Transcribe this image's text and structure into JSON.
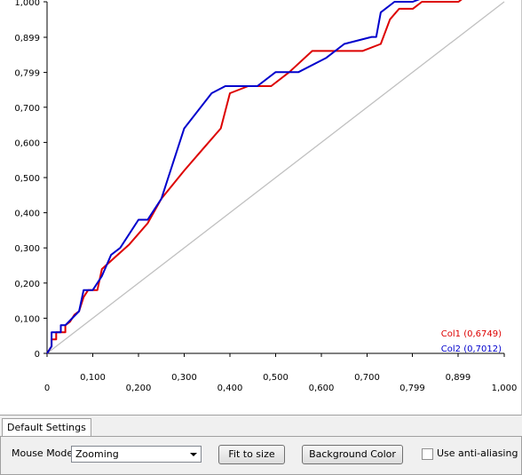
{
  "chart_data": {
    "type": "line",
    "xlim": [
      0,
      1
    ],
    "ylim": [
      0,
      1
    ],
    "x_tick_labels": [
      "0",
      "0,100",
      "0,200",
      "0,300",
      "0,400",
      "0,500",
      "0,600",
      "0,700",
      "0,799",
      "0,899",
      "1,000"
    ],
    "x_ticks": [
      0,
      0.1,
      0.2,
      0.3,
      0.4,
      0.5,
      0.6,
      0.7,
      0.799,
      0.899,
      1.0
    ],
    "y_tick_labels": [
      "0",
      "0,100",
      "0,200",
      "0,300",
      "0,400",
      "0,500",
      "0,600",
      "0,700",
      "0,799",
      "0,899",
      "1,000"
    ],
    "y_ticks": [
      0,
      0.1,
      0.2,
      0.3,
      0.4,
      0.5,
      0.6,
      0.7,
      0.799,
      0.899,
      1.0
    ],
    "grid": false,
    "legend": "bottom-right",
    "series": [
      {
        "name": "Col1 (0,6749)",
        "color": "#dd0000",
        "points": [
          [
            0,
            0
          ],
          [
            0.01,
            0.02
          ],
          [
            0.01,
            0.04
          ],
          [
            0.02,
            0.04
          ],
          [
            0.02,
            0.06
          ],
          [
            0.04,
            0.06
          ],
          [
            0.04,
            0.08
          ],
          [
            0.05,
            0.09
          ],
          [
            0.06,
            0.11
          ],
          [
            0.07,
            0.12
          ],
          [
            0.08,
            0.16
          ],
          [
            0.09,
            0.18
          ],
          [
            0.11,
            0.18
          ],
          [
            0.12,
            0.24
          ],
          [
            0.18,
            0.31
          ],
          [
            0.22,
            0.37
          ],
          [
            0.25,
            0.44
          ],
          [
            0.3,
            0.52
          ],
          [
            0.34,
            0.58
          ],
          [
            0.38,
            0.64
          ],
          [
            0.4,
            0.74
          ],
          [
            0.44,
            0.76
          ],
          [
            0.49,
            0.76
          ],
          [
            0.53,
            0.8
          ],
          [
            0.58,
            0.86
          ],
          [
            0.69,
            0.86
          ],
          [
            0.73,
            0.88
          ],
          [
            0.75,
            0.95
          ],
          [
            0.77,
            0.98
          ],
          [
            0.8,
            0.98
          ],
          [
            0.82,
            1.0
          ],
          [
            0.9,
            1.0
          ],
          [
            0.91,
            1.01
          ],
          [
            1.0,
            1.01
          ]
        ]
      },
      {
        "name": "Col2 (0,7012)",
        "color": "#0000cc",
        "points": [
          [
            0,
            0
          ],
          [
            0.01,
            0.02
          ],
          [
            0.01,
            0.06
          ],
          [
            0.03,
            0.06
          ],
          [
            0.03,
            0.08
          ],
          [
            0.04,
            0.08
          ],
          [
            0.07,
            0.12
          ],
          [
            0.08,
            0.18
          ],
          [
            0.1,
            0.18
          ],
          [
            0.12,
            0.22
          ],
          [
            0.14,
            0.28
          ],
          [
            0.16,
            0.3
          ],
          [
            0.2,
            0.38
          ],
          [
            0.22,
            0.38
          ],
          [
            0.25,
            0.44
          ],
          [
            0.3,
            0.64
          ],
          [
            0.36,
            0.74
          ],
          [
            0.39,
            0.76
          ],
          [
            0.46,
            0.76
          ],
          [
            0.5,
            0.8
          ],
          [
            0.55,
            0.8
          ],
          [
            0.61,
            0.84
          ],
          [
            0.65,
            0.88
          ],
          [
            0.71,
            0.9
          ],
          [
            0.72,
            0.9
          ],
          [
            0.73,
            0.97
          ],
          [
            0.76,
            1.0
          ],
          [
            0.8,
            1.0
          ],
          [
            0.84,
            1.02
          ],
          [
            1.0,
            1.02
          ]
        ]
      },
      {
        "name": "",
        "color": "#c0c0c0",
        "points": [
          [
            0,
            0
          ],
          [
            1,
            1
          ]
        ]
      }
    ]
  },
  "tab": {
    "label": "Default Settings"
  },
  "settings": {
    "mouse_mode_label": "Mouse Mode",
    "mouse_mode_value": "Zooming",
    "fit_button": "Fit to size",
    "bg_button": "Background Color",
    "antialias_label": "Use anti-aliasing",
    "antialias_checked": false
  }
}
